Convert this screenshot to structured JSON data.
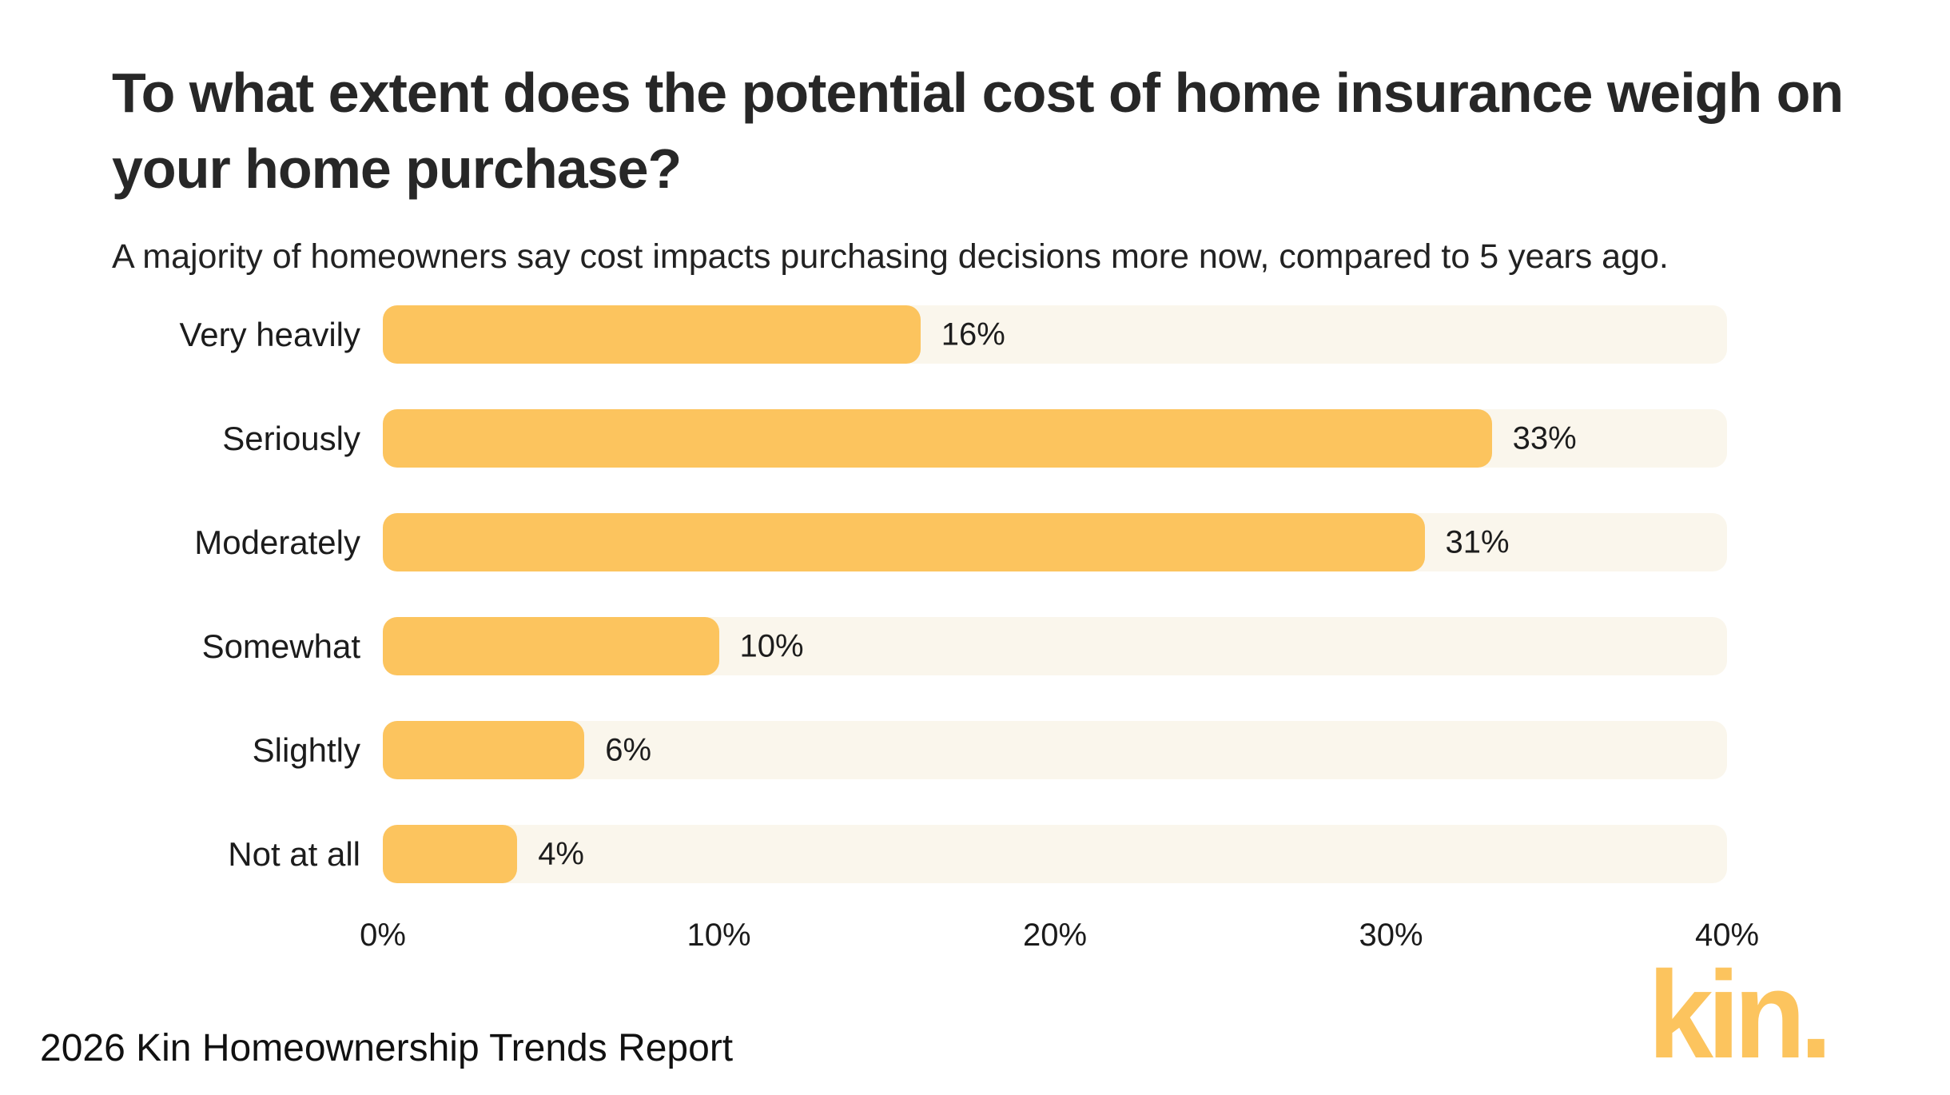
{
  "header": {
    "title": "To what extent does the potential cost of home insurance weigh on your home purchase?",
    "subtitle": "A majority of homeowners say cost impacts purchasing decisions more now, compared to 5 years ago."
  },
  "chart_data": {
    "type": "bar",
    "orientation": "horizontal",
    "title": "To what extent does the potential cost of home insurance weigh on your home purchase?",
    "subtitle": "A majority of homeowners say cost impacts purchasing decisions more now, compared to 5 years ago.",
    "categories": [
      "Very heavily",
      "Seriously",
      "Moderately",
      "Somewhat",
      "Slightly",
      "Not at all"
    ],
    "values": [
      16,
      33,
      31,
      10,
      6,
      4
    ],
    "value_labels": [
      "16%",
      "33%",
      "31%",
      "10%",
      "6%",
      "4%"
    ],
    "x_axis": {
      "tick_labels": [
        "0%",
        "10%",
        "20%",
        "30%",
        "40%"
      ],
      "tick_values": [
        0,
        10,
        20,
        30,
        40
      ],
      "range": [
        0,
        40
      ]
    },
    "grid": false,
    "legend": false,
    "bar_color": "#FCC45E",
    "track_color": "#FAF6EC"
  },
  "footer": {
    "source": "2026 Kin Homeownership Trends Report",
    "logo_text": "kin."
  }
}
